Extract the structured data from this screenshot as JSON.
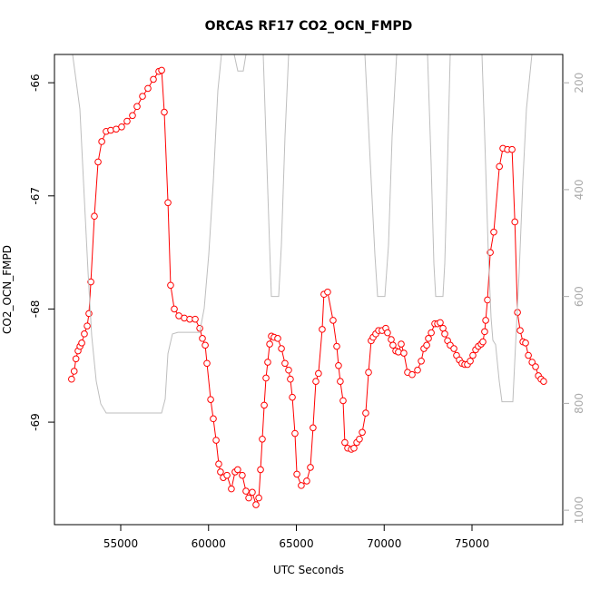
{
  "chart_data": {
    "type": "line",
    "title": "ORCAS RF17 CO2_OCN_FMPD",
    "x_label": "UTC Seconds",
    "y_label": "CO2_OCN_FMPD",
    "xlim": [
      51227,
      80168
    ],
    "ylim": [
      -69.906,
      -65.75
    ],
    "y2lim": [
      1027,
      147
    ],
    "xticks": [
      55000,
      60000,
      65000,
      70000,
      75000
    ],
    "yticks": [
      -66,
      -67,
      -68,
      -69
    ],
    "y2ticks": [
      200,
      400,
      600,
      800,
      1000
    ],
    "grid": false,
    "series": [
      {
        "color": "#ff0000",
        "marker": "circle",
        "x": [
          52200,
          52350,
          52450,
          52570,
          52680,
          52780,
          52930,
          53090,
          53190,
          53300,
          53500,
          53710,
          53920,
          54170,
          54430,
          54740,
          55050,
          55360,
          55670,
          55930,
          56240,
          56550,
          56860,
          57170,
          57330,
          57480,
          57690,
          57840,
          58050,
          58310,
          58620,
          58930,
          59240,
          59500,
          59650,
          59810,
          59910,
          60120,
          60270,
          60430,
          60580,
          60680,
          60840,
          61050,
          61300,
          61510,
          61660,
          61920,
          62130,
          62290,
          62490,
          62700,
          62860,
          62960,
          63060,
          63170,
          63270,
          63370,
          63480,
          63580,
          63730,
          63940,
          64150,
          64350,
          64560,
          64660,
          64770,
          64920,
          65030,
          65280,
          65590,
          65800,
          65950,
          66110,
          66260,
          66470,
          66570,
          66780,
          67090,
          67300,
          67400,
          67500,
          67660,
          67760,
          67920,
          68130,
          68280,
          68440,
          68590,
          68750,
          68950,
          69110,
          69260,
          69370,
          69520,
          69680,
          69880,
          70090,
          70190,
          70400,
          70500,
          70660,
          70810,
          70970,
          71120,
          71330,
          71590,
          71900,
          72110,
          72260,
          72420,
          72520,
          72680,
          72880,
          73040,
          73190,
          73350,
          73450,
          73610,
          73760,
          73970,
          74120,
          74280,
          74430,
          74590,
          74740,
          74900,
          75050,
          75210,
          75360,
          75520,
          75620,
          75720,
          75780,
          75880,
          76040,
          76240,
          76560,
          76760,
          77020,
          77280,
          77440,
          77590,
          77740,
          77900,
          78050,
          78210,
          78420,
          78620,
          78780,
          78930,
          79080
        ],
        "values": [
          -68.62,
          -68.55,
          -68.44,
          -68.37,
          -68.33,
          -68.3,
          -68.22,
          -68.15,
          -68.04,
          -67.76,
          -67.18,
          -66.7,
          -66.52,
          -66.43,
          -66.42,
          -66.41,
          -66.39,
          -66.34,
          -66.29,
          -66.21,
          -66.12,
          -66.05,
          -65.97,
          -65.9,
          -65.89,
          -66.26,
          -67.06,
          -67.79,
          -68.0,
          -68.06,
          -68.08,
          -68.09,
          -68.09,
          -68.17,
          -68.26,
          -68.32,
          -68.48,
          -68.8,
          -68.97,
          -69.16,
          -69.37,
          -69.44,
          -69.49,
          -69.47,
          -69.59,
          -69.44,
          -69.42,
          -69.47,
          -69.61,
          -69.67,
          -69.62,
          -69.73,
          -69.67,
          -69.42,
          -69.15,
          -68.85,
          -68.61,
          -68.47,
          -68.31,
          -68.24,
          -68.25,
          -68.26,
          -68.35,
          -68.48,
          -68.54,
          -68.62,
          -68.78,
          -69.1,
          -69.46,
          -69.56,
          -69.52,
          -69.4,
          -69.05,
          -68.64,
          -68.57,
          -68.18,
          -67.87,
          -67.85,
          -68.1,
          -68.33,
          -68.5,
          -68.64,
          -68.81,
          -69.18,
          -69.23,
          -69.24,
          -69.23,
          -69.18,
          -69.15,
          -69.09,
          -68.92,
          -68.56,
          -68.28,
          -68.25,
          -68.22,
          -68.19,
          -68.19,
          -68.17,
          -68.21,
          -68.27,
          -68.32,
          -68.37,
          -68.38,
          -68.31,
          -68.39,
          -68.56,
          -68.58,
          -68.54,
          -68.46,
          -68.35,
          -68.32,
          -68.26,
          -68.21,
          -68.13,
          -68.13,
          -68.12,
          -68.17,
          -68.22,
          -68.28,
          -68.32,
          -68.35,
          -68.41,
          -68.45,
          -68.48,
          -68.49,
          -68.49,
          -68.46,
          -68.41,
          -68.36,
          -68.33,
          -68.31,
          -68.29,
          -68.2,
          -68.1,
          -67.92,
          -67.5,
          -67.32,
          -66.74,
          -66.58,
          -66.59,
          -66.59,
          -67.23,
          -68.03,
          -68.19,
          -68.29,
          -68.3,
          -68.41,
          -68.47,
          -68.51,
          -68.59,
          -68.62,
          -68.64
        ]
      },
      {
        "color": "#bebebe",
        "axis": "y2",
        "x": [
          52260,
          52674,
          52932,
          53139,
          53346,
          53604,
          53863,
          54173,
          57325,
          57532,
          57687,
          57945,
          58255,
          59496,
          59754,
          60013,
          60271,
          60529,
          60736,
          61000,
          61460,
          61666,
          61976,
          62131,
          62600,
          63113,
          63268,
          63475,
          63578,
          63992,
          64147,
          64354,
          64560,
          66700,
          68902,
          69212,
          69470,
          69625,
          70039,
          70246,
          70452,
          70711,
          71600,
          72468,
          72674,
          72829,
          72933,
          73346,
          73450,
          73605,
          73760,
          74700,
          75568,
          75723,
          75930,
          76085,
          76188,
          76343,
          76550,
          76705,
          77325,
          77480,
          77687,
          77894,
          78100,
          78410
        ],
        "values": [
          147,
          249,
          419,
          554,
          673,
          758,
          801,
          818,
          818,
          792,
          707,
          670,
          667,
          667,
          622,
          521,
          385,
          215,
          147,
          null,
          147,
          178,
          178,
          147,
          null,
          147,
          300,
          504,
          600,
          600,
          504,
          300,
          147,
          null,
          147,
          351,
          521,
          600,
          600,
          504,
          300,
          147,
          null,
          147,
          351,
          538,
          600,
          600,
          538,
          351,
          147,
          null,
          147,
          300,
          521,
          639,
          682,
          690,
          758,
          797,
          797,
          690,
          554,
          385,
          249,
          147
        ]
      }
    ]
  }
}
